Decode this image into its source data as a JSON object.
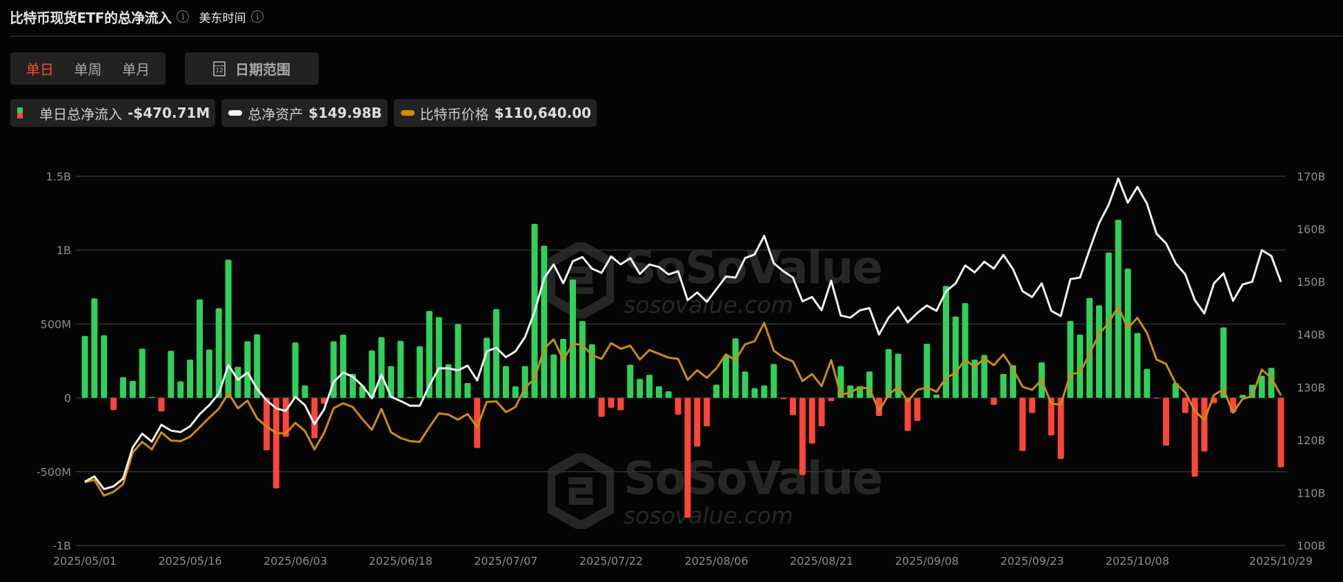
{
  "header": {
    "title": "比特币现货ETF的总净流入",
    "timezone": "美东时间"
  },
  "period_tabs": [
    {
      "label": "单日",
      "active": true
    },
    {
      "label": "单周",
      "active": false
    },
    {
      "label": "单月",
      "active": false
    }
  ],
  "date_range": {
    "label": "日期范围",
    "icon": "calendar-icon",
    "icon_text": "12"
  },
  "legend": [
    {
      "label": "单日总净流入",
      "value": "-$470.71M",
      "icon": "bar-swatch"
    },
    {
      "label": "总净资产",
      "value": "$149.98B",
      "icon": "line-swatch",
      "color": "#f2f2f2"
    },
    {
      "label": "比特币价格",
      "value": "$110,640.00",
      "icon": "line-swatch",
      "color": "#d08c0a"
    }
  ],
  "watermark": {
    "brand": "SoSoValue",
    "site": "sosovalue.com"
  },
  "colors": {
    "inflow": "#30d158",
    "outflow": "#ff453a",
    "assets": "#f2f2f2",
    "price": "#d08c0a",
    "grid": "#333333",
    "accent": "#ff4a2a"
  },
  "chart_data": {
    "type": "bar+line",
    "left_axis": {
      "ticks": [
        "1.5B",
        "1B",
        "500M",
        "0",
        "-500M",
        "-1B"
      ],
      "range_millions": [
        -1000,
        1500
      ]
    },
    "right_axis": {
      "ticks": [
        "170B",
        "160B",
        "150B",
        "140B",
        "130B",
        "120B",
        "110B",
        "100B"
      ],
      "range_billions": [
        100,
        170
      ]
    },
    "x_ticks": [
      "2025/05/01",
      "2025/05/16",
      "2025/06/03",
      "2025/06/18",
      "2025/07/07",
      "2025/07/22",
      "2025/08/06",
      "2025/08/21",
      "2025/09/08",
      "2025/09/23",
      "2025/10/08",
      "2025/10/29"
    ],
    "grid": true,
    "x": [
      "2025/05/01",
      "2025/05/02",
      "2025/05/05",
      "2025/05/06",
      "2025/05/07",
      "2025/05/08",
      "2025/05/09",
      "2025/05/12",
      "2025/05/13",
      "2025/05/14",
      "2025/05/15",
      "2025/05/16",
      "2025/05/19",
      "2025/05/20",
      "2025/05/21",
      "2025/05/22",
      "2025/05/23",
      "2025/05/27",
      "2025/05/28",
      "2025/05/29",
      "2025/05/30",
      "2025/06/02",
      "2025/06/03",
      "2025/06/04",
      "2025/06/05",
      "2025/06/06",
      "2025/06/09",
      "2025/06/10",
      "2025/06/11",
      "2025/06/12",
      "2025/06/13",
      "2025/06/16",
      "2025/06/17",
      "2025/06/18",
      "2025/06/20",
      "2025/06/23",
      "2025/06/24",
      "2025/06/25",
      "2025/06/26",
      "2025/06/27",
      "2025/06/30",
      "2025/07/01",
      "2025/07/02",
      "2025/07/03",
      "2025/07/07",
      "2025/07/08",
      "2025/07/09",
      "2025/07/10",
      "2025/07/11",
      "2025/07/14",
      "2025/07/15",
      "2025/07/16",
      "2025/07/17",
      "2025/07/18",
      "2025/07/21",
      "2025/07/22",
      "2025/07/23",
      "2025/07/24",
      "2025/07/25",
      "2025/07/28",
      "2025/07/29",
      "2025/07/30",
      "2025/07/31",
      "2025/08/01",
      "2025/08/04",
      "2025/08/05",
      "2025/08/06",
      "2025/08/07",
      "2025/08/08",
      "2025/08/11",
      "2025/08/12",
      "2025/08/13",
      "2025/08/14",
      "2025/08/15",
      "2025/08/18",
      "2025/08/19",
      "2025/08/20",
      "2025/08/21",
      "2025/08/22",
      "2025/08/25",
      "2025/08/26",
      "2025/08/27",
      "2025/08/28",
      "2025/08/29",
      "2025/09/02",
      "2025/09/03",
      "2025/09/04",
      "2025/09/05",
      "2025/09/08",
      "2025/09/09",
      "2025/09/10",
      "2025/09/11",
      "2025/09/12",
      "2025/09/15",
      "2025/09/16",
      "2025/09/17",
      "2025/09/18",
      "2025/09/19",
      "2025/09/22",
      "2025/09/23",
      "2025/09/24",
      "2025/09/25",
      "2025/09/26",
      "2025/09/29",
      "2025/09/30",
      "2025/10/01",
      "2025/10/02",
      "2025/10/03",
      "2025/10/06",
      "2025/10/07",
      "2025/10/08",
      "2025/10/09",
      "2025/10/10",
      "2025/10/13",
      "2025/10/14",
      "2025/10/15",
      "2025/10/16",
      "2025/10/17",
      "2025/10/20",
      "2025/10/21",
      "2025/10/22",
      "2025/10/23",
      "2025/10/24",
      "2025/10/27",
      "2025/10/28",
      "2025/10/29"
    ],
    "series": [
      {
        "name": "单日总净流入",
        "type": "bar",
        "unit": "M USD",
        "axis": "left",
        "values": [
          419,
          673,
          424,
          -83,
          140,
          115,
          333,
          5,
          -92,
          318,
          112,
          259,
          667,
          327,
          607,
          935,
          210,
          383,
          430,
          -355,
          -614,
          -265,
          375,
          84,
          -274,
          -40,
          383,
          428,
          162,
          81,
          321,
          411,
          215,
          386,
          6,
          349,
          589,
          547,
          227,
          500,
          100,
          -340,
          407,
          601,
          215,
          78,
          215,
          1178,
          1030,
          294,
          400,
          801,
          520,
          363,
          -129,
          -67,
          -84,
          224,
          128,
          156,
          78,
          44,
          -114,
          -812,
          -330,
          -193,
          89,
          287,
          402,
          178,
          65,
          84,
          229,
          -9,
          -118,
          -523,
          -310,
          -193,
          -22,
          215,
          84,
          79,
          178,
          -123,
          330,
          299,
          -224,
          -157,
          366,
          22,
          757,
          551,
          642,
          259,
          290,
          -48,
          162,
          221,
          -360,
          -103,
          240,
          -255,
          -414,
          520,
          428,
          676,
          626,
          984,
          1206,
          875,
          439,
          196,
          -5,
          -324,
          100,
          -103,
          -534,
          -364,
          -37,
          477,
          -100,
          20,
          89,
          150,
          203,
          -470.71
        ]
      },
      {
        "name": "总净资产",
        "type": "line",
        "unit": "B USD",
        "axis": "right",
        "values": [
          112.1,
          113.1,
          110.7,
          111.2,
          112.7,
          118.6,
          121.2,
          119.7,
          122.9,
          121.8,
          121.5,
          122.6,
          124.9,
          126.6,
          128.8,
          134.2,
          131.4,
          132.8,
          129.7,
          127.5,
          126.0,
          125.5,
          128.2,
          126.6,
          123.0,
          125.8,
          131.0,
          132.8,
          132.0,
          130.3,
          127.9,
          132.4,
          128.2,
          127.4,
          126.5,
          126.5,
          130.3,
          133.6,
          133.6,
          133.2,
          134.1,
          131.3,
          136.8,
          137.5,
          135.7,
          136.8,
          139.5,
          144.3,
          150.7,
          153.3,
          149.7,
          153.9,
          154.7,
          152.5,
          151.7,
          154.8,
          153.3,
          154.5,
          151.5,
          153.3,
          152.8,
          151.4,
          152.0,
          146.5,
          148.0,
          146.2,
          148.6,
          151.0,
          150.8,
          154.5,
          155.2,
          158.7,
          153.5,
          152.0,
          150.8,
          146.3,
          147.1,
          144.6,
          150.2,
          143.6,
          143.2,
          144.6,
          145.0,
          140.0,
          143.2,
          145.2,
          142.3,
          144.1,
          145.5,
          144.5,
          148.2,
          149.7,
          153.1,
          151.8,
          153.8,
          152.5,
          155.1,
          152.4,
          148.2,
          147.1,
          149.7,
          144.5,
          143.5,
          150.5,
          150.8,
          156.1,
          161.1,
          164.6,
          169.6,
          165.0,
          168.0,
          164.8,
          159.1,
          157.3,
          153.5,
          151.4,
          146.5,
          144.0,
          149.7,
          151.6,
          146.4,
          149.5,
          150.0,
          156.0,
          154.9,
          149.98
        ]
      },
      {
        "name": "比特币价格",
        "type": "line",
        "unit": "USD",
        "axis": "hidden",
        "values": [
          96900,
          97300,
          94800,
          95400,
          96600,
          101600,
          103300,
          102100,
          104800,
          103500,
          103400,
          104100,
          105600,
          107100,
          108500,
          111000,
          108600,
          109800,
          107000,
          105700,
          104700,
          104600,
          106300,
          105000,
          102100,
          104700,
          108600,
          109400,
          108800,
          106900,
          105200,
          108500,
          104800,
          103900,
          103400,
          103300,
          105600,
          107800,
          107600,
          106800,
          107700,
          105600,
          109600,
          109700,
          108000,
          108800,
          111800,
          113300,
          118000,
          119500,
          116200,
          118800,
          118600,
          117000,
          116400,
          118900,
          118000,
          118500,
          116300,
          117800,
          117200,
          116600,
          116400,
          113100,
          114600,
          113400,
          114900,
          117100,
          116200,
          118700,
          119200,
          122100,
          117700,
          116600,
          116000,
          112900,
          114000,
          112100,
          116200,
          110700,
          111100,
          111900,
          111700,
          108200,
          110700,
          112000,
          109700,
          111500,
          111900,
          111200,
          113400,
          114200,
          116300,
          115100,
          116500,
          115400,
          117100,
          114800,
          112000,
          111500,
          113100,
          109300,
          109200,
          114000,
          114200,
          117200,
          120300,
          122100,
          124700,
          121200,
          122900,
          120500,
          116300,
          115600,
          112500,
          111100,
          108200,
          106700,
          110700,
          111600,
          107900,
          110100,
          110500,
          114700,
          113400,
          110640
        ]
      }
    ]
  }
}
